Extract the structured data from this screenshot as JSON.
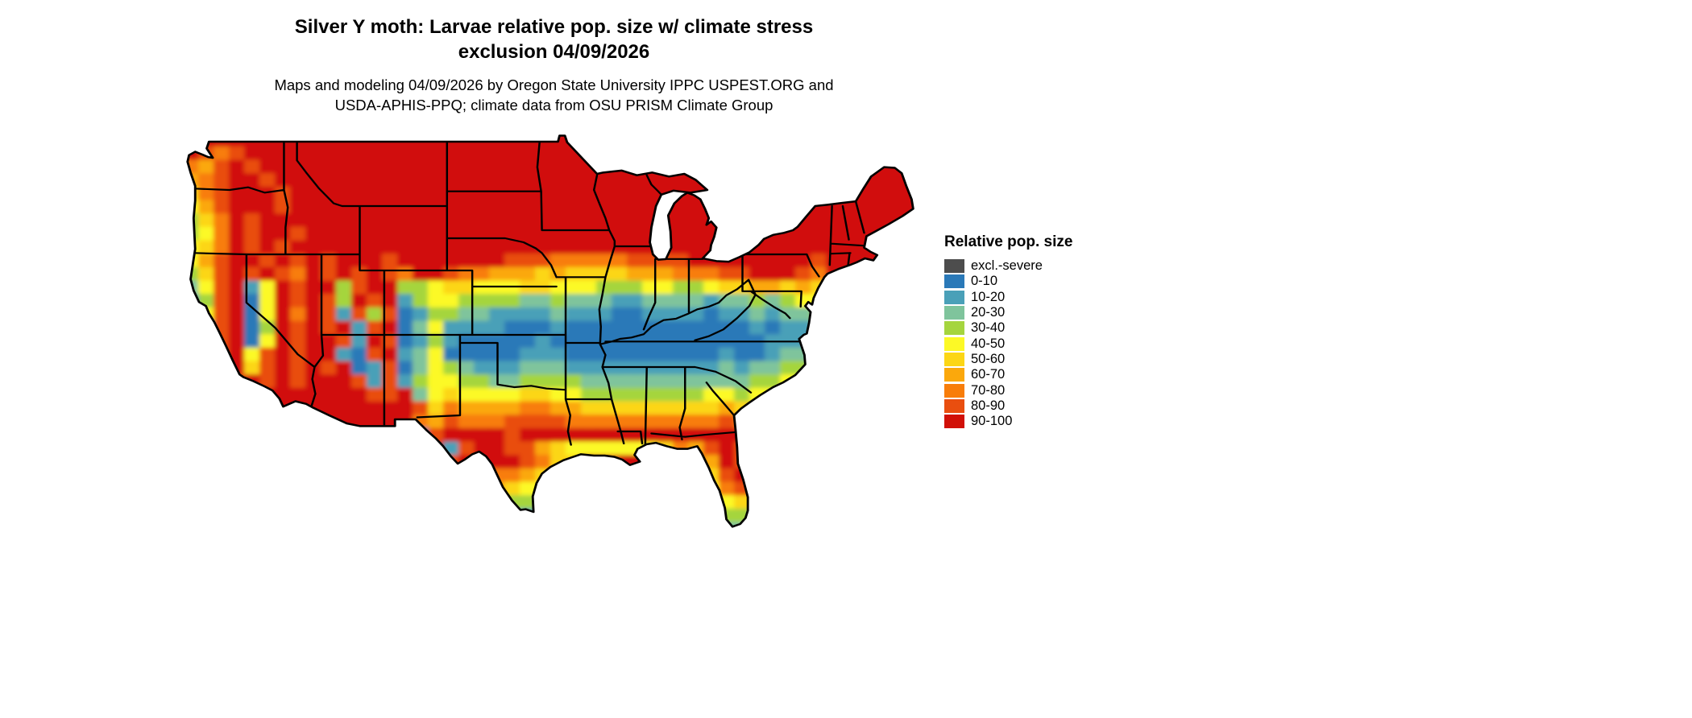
{
  "header": {
    "title_line1": "Silver Y moth: Larvae relative pop. size w/ climate stress",
    "title_line2": "exclusion 04/09/2026",
    "subtitle_line1": "Maps and modeling 04/09/2026 by Oregon State University IPPC USPEST.ORG and",
    "subtitle_line2": "USDA-APHIS-PPQ; climate data from OSU PRISM Climate Group"
  },
  "legend": {
    "title": "Relative pop. size",
    "items": [
      {
        "label": "excl.-severe",
        "color": "#4d4d4d"
      },
      {
        "label": "0-10",
        "color": "#2a79b8"
      },
      {
        "label": "10-20",
        "color": "#4aa0b8"
      },
      {
        "label": "20-30",
        "color": "#7fc49c"
      },
      {
        "label": "30-40",
        "color": "#a5d53e"
      },
      {
        "label": "40-50",
        "color": "#fcf926"
      },
      {
        "label": "50-60",
        "color": "#fcd615"
      },
      {
        "label": "60-70",
        "color": "#fba80c"
      },
      {
        "label": "70-80",
        "color": "#f87d09"
      },
      {
        "label": "80-90",
        "color": "#e94e0f"
      },
      {
        "label": "90-100",
        "color": "#d11007"
      }
    ]
  },
  "map": {
    "palette": {
      "x": "#4d4d4d",
      "1": "#2a79b8",
      "2": "#4aa0b8",
      "3": "#7fc49c",
      "4": "#a5d53e",
      "5": "#fcf926",
      "6": "#fcd615",
      "7": "#fba80c",
      "8": "#f87d09",
      "9": "#e94e0f",
      "a": "#d11007"
    },
    "raster": {
      "cols": 48,
      "rows_segments": [
        [
          "aaaaaaaa",
          "aaaaaaaa",
          "aaaaaaaa",
          "aaaaaaaa",
          "aaaaaaaa",
          "aaaaaaaa"
        ],
        [
          "a989aaaa",
          "aaaaaaaa",
          "aaaaaaaa",
          "aaaaaaaa",
          "aaaaaaaa",
          "aaaaaaaa"
        ],
        [
          "879a9aaa",
          "aaaaaaaa",
          "aaaaaaaa",
          "aaaaaaaa",
          "aaaaaaaa",
          "aaaaaaaa"
        ],
        [
          "789aa9aa",
          "aaaaaaaa",
          "aaaaaaaa",
          "aaaaaaaa",
          "aaaaaaaa",
          "aaaaaaaa"
        ],
        [
          "689aaa9a",
          "aaaaaaaa",
          "aaaaaaaa",
          "aaaaaaaa",
          "aaaaaaaa",
          "aaaaaaaa"
        ],
        [
          "579aaa9a",
          "aaaaaaaa",
          "aaaaaaaa",
          "aaaaaaaa",
          "aaaaaaaa",
          "aaaaaaaa"
        ],
        [
          "468a9aaa",
          "aaaaaaaa",
          "aaaaaaaa",
          "aaaaaaaa",
          "aaaaaaaa",
          "aaaaaaaa"
        ],
        [
          "458a9aa9",
          "aaaaaaaa",
          "aaaaaaaa",
          "aaaaaaaa",
          "aaaaaaaa",
          "aaaaaaaa"
        ],
        [
          "568a9a9a",
          "aaaaaaaa",
          "aaaaaaaa",
          "aaaaaaaa",
          "aaaaaaaa",
          "aaaaaaaa"
        ],
        [
          "579aa9a9",
          "a9aaa9aa",
          "aaaaa999",
          "88888999",
          "9aaaaaaa",
          "a9aaaaaa"
        ],
        [
          "469a9a98",
          "a9a9a98a",
          "a9887776",
          "76666777",
          "88899aaa",
          "98aaaaaa"
        ],
        [
          "359a25a9",
          "aa49aa44",
          "56655566",
          "55544455",
          "44566776",
          "76aaaaaa"
        ],
        [
          "249a15a9",
          "a94a9a24",
          "55444433",
          "43332233",
          "33233434",
          "55aaaaaa"
        ],
        [
          "159a15a8",
          "a9294912",
          "44332222",
          "32221122",
          "22122323",
          "34aaaaaa"
        ],
        [
          "139a14a9",
          "a9a29a13",
          "52222111",
          "21111111",
          "11111212",
          "23aaaaaa"
        ],
        [
          "239a15a9",
          "aa92a912",
          "42111112",
          "11111111",
          "11111122",
          "23aaaaaa"
        ],
        [
          "259a59a9",
          "aa219a23",
          "51111122",
          "21111111",
          "11121123",
          "33aaaaaa"
        ],
        [
          "379a69a9",
          "a9a12913",
          "54322233",
          "32222222",
          "22232334",
          "44aaaaaa"
        ],
        [
          "58a9a9a9",
          "aaa92924",
          "55443344",
          "44333333",
          "33333445",
          "55aaaaaa"
        ],
        [
          "68aaaaaa",
          "aaaa99a3",
          "56555566",
          "55444444",
          "44554556",
          "56aaaaaa"
        ],
        [
          "aaaaaaaa",
          "aaaaaaa9",
          "68777788",
          "77666666",
          "66676678",
          "77aaaaaa"
        ],
        [
          "aaaaaaaa",
          "aaaaaaa8",
          "79888999",
          "98888888",
          "88898899",
          "89aaaaaa"
        ],
        [
          "aaaaaaaa",
          "aaaaaa91",
          "9aaaa9aa",
          "aaaaaaaa",
          "aaaaaaaa",
          "aaaaaaaa"
        ],
        [
          "aaaaaaaa",
          "aaaaaa1a",
          "a29aa997",
          "65555556",
          "879a9aaa",
          "aaaaaaaa"
        ],
        [
          "aaaaaaaa",
          "aaaaaaaa",
          "a9aaaa98",
          "66aaaaaa",
          "aa7a9aaa",
          "aaaaaaaa"
        ],
        [
          "aaaaaaaa",
          "aaaaaaaa",
          "aa998876",
          "5aaaaaaa",
          "aa69a8aa",
          "aaaaaaaa"
        ],
        [
          "aaaaaaaa",
          "aaaaaaaa",
          "a9877655",
          "4aaaaaaa",
          "aa5896aa",
          "aaaaaaaa"
        ],
        [
          "aaaaaaaa",
          "aaaaaaaa",
          "aa665443",
          "aaaaaaaa",
          "aa4565aa",
          "aaaaaaaa"
        ],
        [
          "aaaaaaaa",
          "aaaaaaaa",
          "aaa43322",
          "aaaaaaaa",
          "aa3443aa",
          "aaaaaaaa"
        ],
        [
          "aaaaaaaa",
          "aaaaaaaa",
          "aaaaaaaa",
          "aaaaaaaa",
          "aa2332aa",
          "aaaaaaaa"
        ]
      ]
    }
  }
}
